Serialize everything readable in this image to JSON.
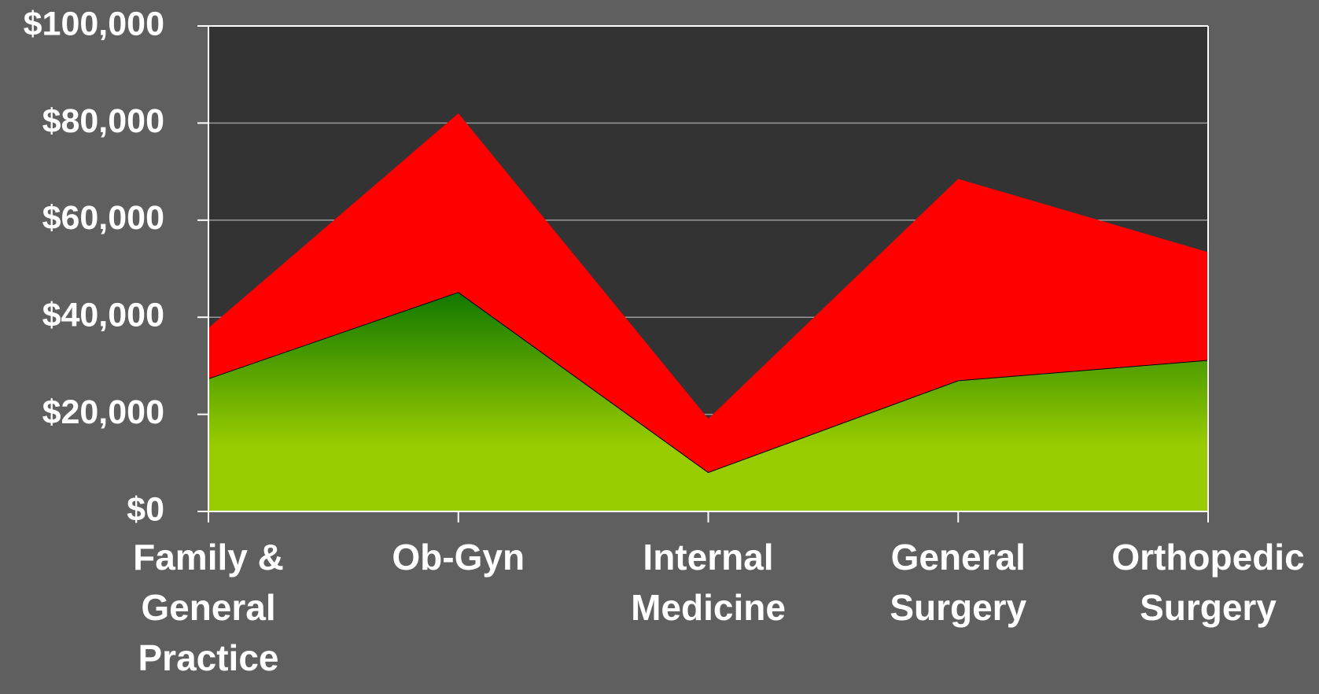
{
  "chart_data": {
    "type": "stacked_area",
    "categories": [
      "Family & General Practice",
      "Ob-Gyn",
      "Internal Medicine",
      "General Surgery",
      "Orthopedic Surgery"
    ],
    "series": [
      {
        "color": "#99cc00",
        "values": [
          27400,
          45200,
          8100,
          27000,
          31200
        ]
      },
      {
        "color": "#ff0000",
        "values": [
          10400,
          36800,
          11000,
          41500,
          22200
        ]
      }
    ],
    "ylim": [
      0,
      100000
    ],
    "yticks": [
      {
        "value": 0,
        "label": "$0"
      },
      {
        "value": 20000,
        "label": "$20,000"
      },
      {
        "value": 40000,
        "label": "$40,000"
      },
      {
        "value": 60000,
        "label": "$60,000"
      },
      {
        "value": 80000,
        "label": "$80,000"
      },
      {
        "value": 100000,
        "label": "$100,000"
      }
    ],
    "grid": true
  }
}
